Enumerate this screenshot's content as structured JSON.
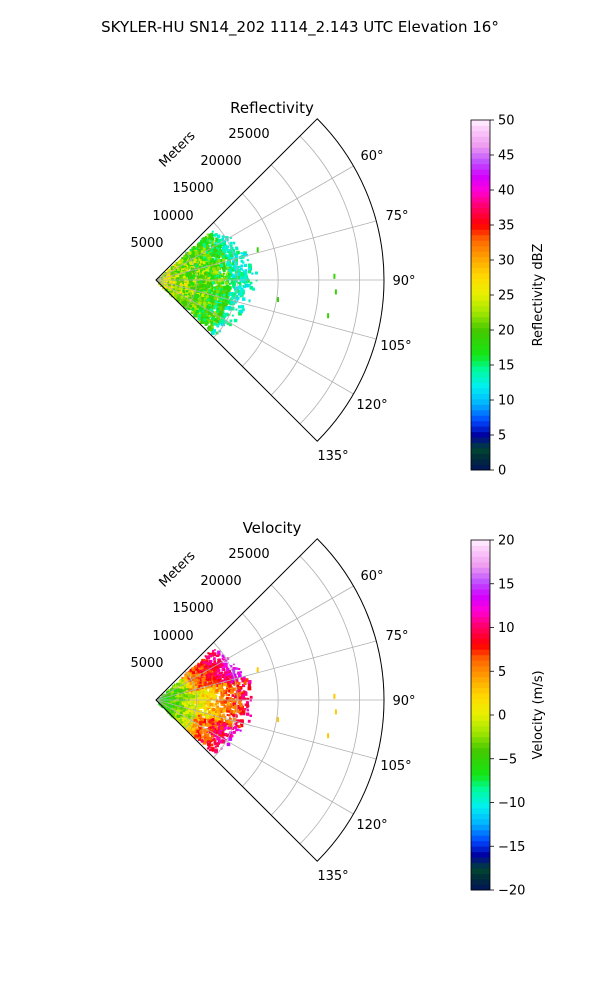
{
  "figure": {
    "title": "SKYLER-HU  SN14_202  1114_2.143 UTC Elevation 16°"
  },
  "chart_data": [
    {
      "type": "polar_sector",
      "title": "Reflectivity",
      "radial_label": "Meters",
      "angle_ticks": [
        "60°",
        "75°",
        "90°",
        "105°",
        "120°",
        "135°"
      ],
      "angle_values_deg": [
        60,
        75,
        90,
        105,
        120,
        135
      ],
      "angle_range_deg": [
        45,
        135
      ],
      "radial_ticks": [
        "5000",
        "10000",
        "15000",
        "20000",
        "25000"
      ],
      "radial_values": [
        5000,
        10000,
        15000,
        20000,
        25000
      ],
      "rlim": [
        0,
        28000
      ],
      "grid": true,
      "colorbar": {
        "label": "Reflectivity dBZ",
        "ticks": [
          "0",
          "5",
          "10",
          "15",
          "20",
          "25",
          "30",
          "35",
          "40",
          "45",
          "50"
        ],
        "min": 0,
        "max": 50
      },
      "field_summary": {
        "main_echo_range_m": [
          0,
          12000
        ],
        "dominant_value_range": [
          10,
          28
        ]
      }
    },
    {
      "type": "polar_sector",
      "title": "Velocity",
      "radial_label": "Meters",
      "angle_ticks": [
        "60°",
        "75°",
        "90°",
        "105°",
        "120°",
        "135°"
      ],
      "angle_values_deg": [
        60,
        75,
        90,
        105,
        120,
        135
      ],
      "angle_range_deg": [
        45,
        135
      ],
      "radial_ticks": [
        "5000",
        "10000",
        "15000",
        "20000",
        "25000"
      ],
      "radial_values": [
        5000,
        10000,
        15000,
        20000,
        25000
      ],
      "rlim": [
        0,
        28000
      ],
      "grid": true,
      "colorbar": {
        "label": "Velocity (m/s)",
        "ticks": [
          "20",
          "15",
          "10",
          "5",
          "0",
          "−5",
          "−10",
          "−15",
          "−20"
        ],
        "tick_values": [
          20,
          15,
          10,
          5,
          0,
          -5,
          -10,
          -15,
          -20
        ],
        "min": -20,
        "max": 20
      },
      "field_summary": {
        "main_echo_range_m": [
          0,
          12000
        ],
        "dominant_value_range": [
          -8,
          12
        ]
      }
    }
  ]
}
